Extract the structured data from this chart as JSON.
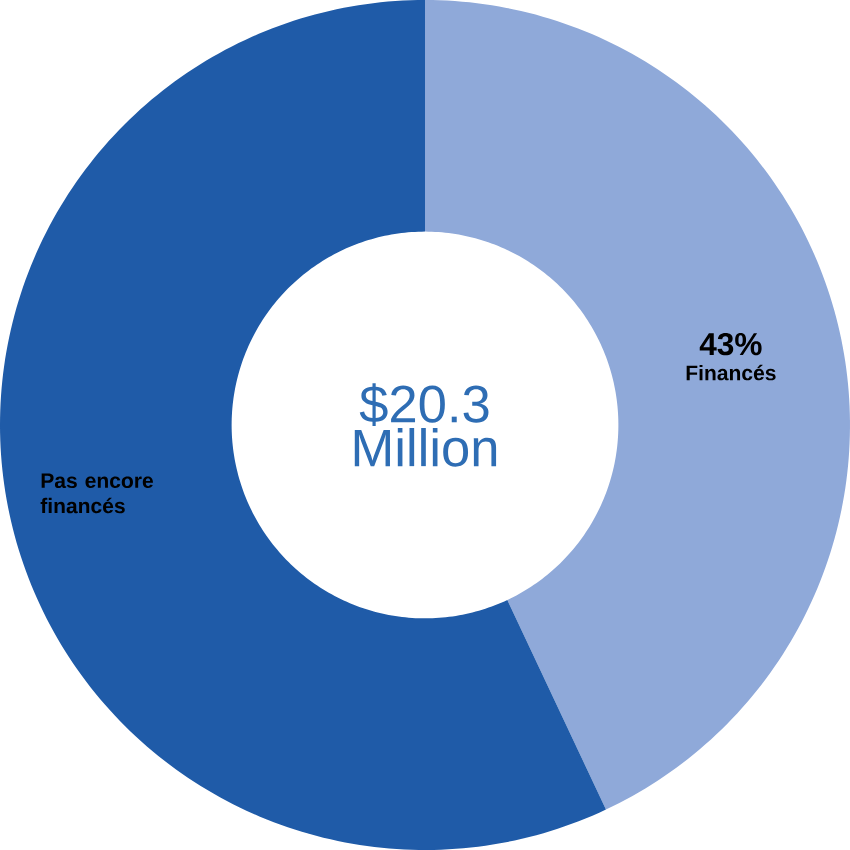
{
  "chart_data": {
    "type": "donut",
    "categories": [
      "Financés",
      "Pas encore financés"
    ],
    "values": [
      43,
      57
    ],
    "colors": [
      "#8fa9d9",
      "#1f5ba8"
    ],
    "value_labels": [
      "43%",
      null
    ],
    "annotations": [
      "$20.3 Million"
    ]
  }
}
